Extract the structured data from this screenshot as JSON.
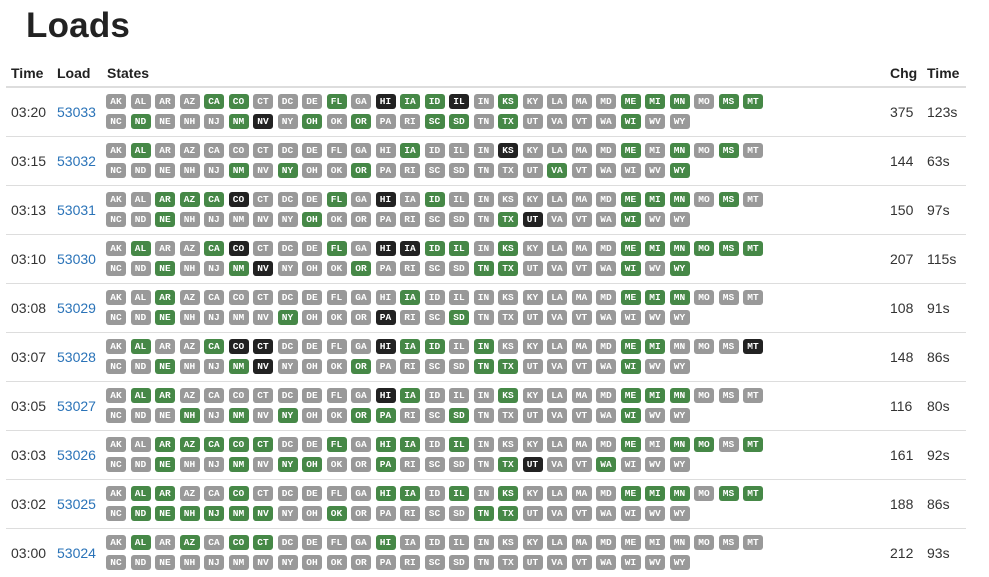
{
  "page": {
    "title": "Loads"
  },
  "headers": {
    "time": "Time",
    "load": "Load",
    "states": "States",
    "chg": "Chg",
    "duration": "Time"
  },
  "state_codes": [
    "AK",
    "AL",
    "AR",
    "AZ",
    "CA",
    "CO",
    "CT",
    "DC",
    "DE",
    "FL",
    "GA",
    "HI",
    "IA",
    "ID",
    "IL",
    "IN",
    "KS",
    "KY",
    "LA",
    "MA",
    "MD",
    "ME",
    "MI",
    "MN",
    "MO",
    "MS",
    "MT",
    "NC",
    "ND",
    "NE",
    "NH",
    "NJ",
    "NM",
    "NV",
    "NY",
    "OH",
    "OK",
    "OR",
    "PA",
    "RI",
    "SC",
    "SD",
    "TN",
    "TX",
    "UT",
    "VA",
    "VT",
    "WA",
    "WI",
    "WV",
    "WY"
  ],
  "status_colors": {
    "g": "#999999",
    "p": "#468847",
    "f": "#222222"
  },
  "status_legend": {
    "g": "gray",
    "p": "green",
    "f": "black"
  },
  "rows": [
    {
      "time": "03:20",
      "load": "53033",
      "chg": "375",
      "duration": "123s",
      "states": "ggggppggg pgfpp fgpggg gggpppgpp gpgggggff gp gpgp gggggggpgg"
    },
    {
      "time": "03:15",
      "load": "53032",
      "chg": "144",
      "duration": "63s",
      "states": "gpggggggggggpgggfgggggpgpgpgggggggpgpggggggggggpgggggp"
    },
    {
      "time": "03:13",
      "load": "53031",
      "chg": "150",
      "duration": "97s",
      "states": "ggppp fgggpgfgpggggggggpppgpgggpggg gpgggggggpfgggpgg"
    },
    {
      "time": "03:10",
      "load": "53030",
      "chg": "207",
      "duration": "115s",
      "states": "gpggpfgggpgffppgpgggggppppppggpgggpfggg pggggppgggg gpgp"
    },
    {
      "time": "03:08",
      "load": "53029",
      "chg": "108",
      "duration": "91s",
      "states": "ggpgggggggggpggggggggppgggggg pggggggppggfggpggggggggg"
    },
    {
      "time": "03:07",
      "load": "53028",
      "chg": "148",
      "duration": "86s",
      "states": "gpggpffgggg fppgpgggggpppggfggpggppfggp ggpppggggpgp gg"
    },
    {
      "time": "03:05",
      "load": "53027",
      "chg": "116",
      "duration": "80s",
      "states": "gppggggggggfpgggpgggg pppggggppgpppggppgpgggggggpggg"
    },
    {
      "time": "03:03",
      "load": "53026",
      "chg": "161",
      "duration": "92s",
      "states": "ggppppppgpgppgpgggg gpppgpggpgppggppgg gppfggpggg gg"
    },
    {
      "time": "03:02",
      "load": "53025",
      "chg": "188",
      "duration": "86s",
      "states": "gppggpgggggppgpgpgggpppgpp pppppppggpggggppggggggg ggggg"
    },
    {
      "time": "03:00",
      "load": "53024",
      "chg": "212",
      "duration": "93s",
      "states": "gpgpgppggggpgggggggggggggggggggggggggggggggggggggggg"
    }
  ]
}
